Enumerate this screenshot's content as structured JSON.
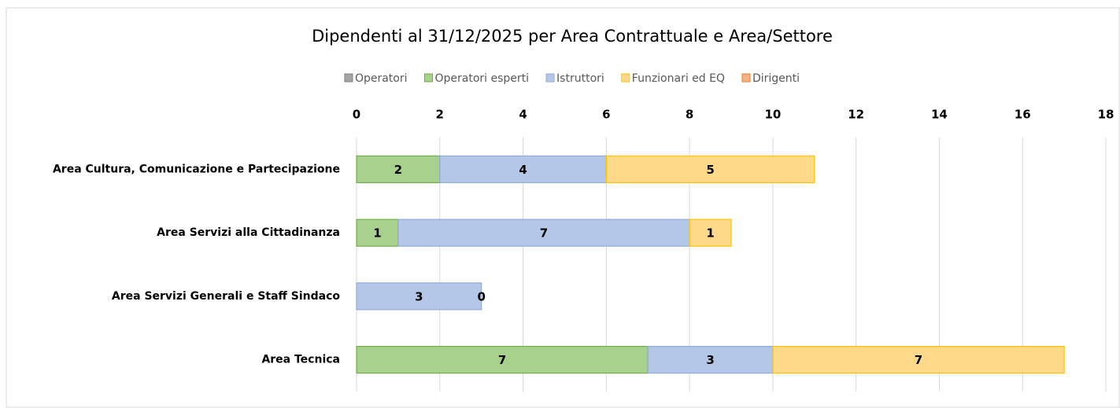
{
  "chart_data": {
    "type": "stacked_bar_horizontal",
    "title": "Dipendenti al 31/12/2025 per Area Contrattuale e Area/Settore",
    "categories": [
      "Area Cultura, Comunicazione e Partecipazione",
      "Area Servizi alla Cittadinanza",
      "Area Servizi Generali e Staff Sindaco",
      "Area Tecnica"
    ],
    "series": [
      {
        "name": "Operatori",
        "color": "#a5a5a5",
        "values": [
          null,
          null,
          null,
          null
        ]
      },
      {
        "name": "Operatori esperti",
        "color": "#a9d18e",
        "values": [
          2,
          1,
          null,
          7
        ]
      },
      {
        "name": "Istruttori",
        "color": "#b4c7e7",
        "values": [
          4,
          7,
          3,
          3
        ]
      },
      {
        "name": "Funzionari ed EQ",
        "color": "#ffd98a",
        "values": [
          5,
          1,
          0,
          7
        ]
      },
      {
        "name": "Dirigenti",
        "color": "#f4b183",
        "values": [
          null,
          null,
          null,
          null
        ]
      }
    ],
    "xlim": [
      0,
      18
    ],
    "xticks": [
      0,
      2,
      4,
      6,
      8,
      10,
      12,
      14,
      16,
      18
    ],
    "grid": true,
    "legend": "top"
  }
}
